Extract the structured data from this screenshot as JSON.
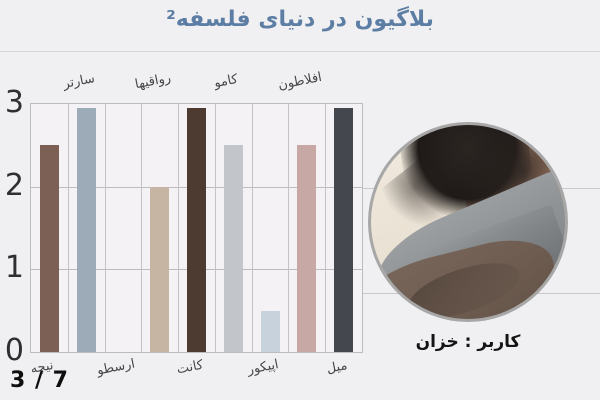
{
  "page": {
    "background": "#f0eff1",
    "title_color": "#5d7ea4"
  },
  "header": {
    "title": "بلاگیون در دنیای فلسفه²"
  },
  "chart_data": {
    "type": "bar",
    "title": "بلاگیون در دنیای فلسفه²",
    "categories": [
      "نیچه",
      "سارتر",
      "ارسطو",
      "رواقیها",
      "کانت",
      "کامو",
      "اپیکور",
      "افلاطون",
      "میل"
    ],
    "values": [
      2.5,
      2.95,
      0,
      2,
      2.95,
      2.5,
      0.5,
      2.5,
      2.95
    ],
    "bar_colors": [
      "#7d6055",
      "#9dabb9",
      "#b5b5b5",
      "#c7b5a3",
      "#4d3a30",
      "#c2c6cb",
      "#c8d2dc",
      "#c8a8a5",
      "#44474e"
    ],
    "label_side": [
      "bottom",
      "top",
      "bottom",
      "top",
      "bottom",
      "top",
      "bottom",
      "top",
      "bottom"
    ],
    "xlabel": "",
    "ylabel": "",
    "yticks": [
      0,
      1,
      2,
      3
    ],
    "ylim": [
      0,
      3
    ],
    "grid": "on",
    "legend": "none"
  },
  "profile": {
    "caption": "کاربر : خزان"
  },
  "pagination": {
    "current": "3 / 7"
  }
}
